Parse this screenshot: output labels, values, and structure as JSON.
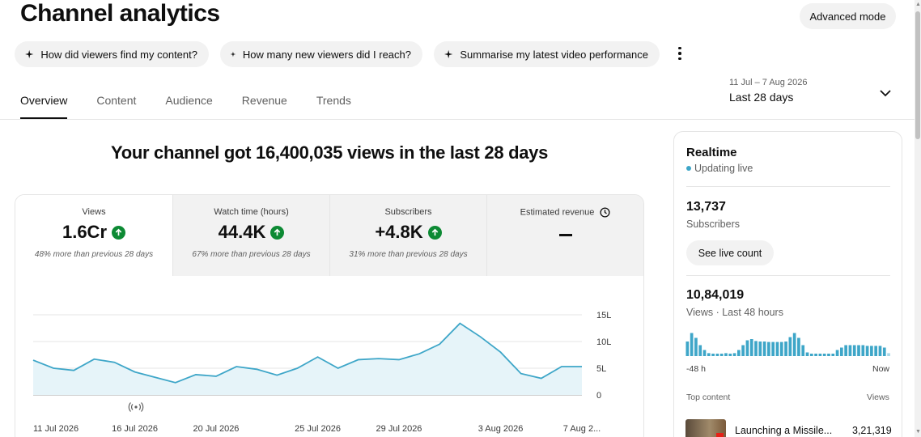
{
  "header": {
    "title": "Channel analytics",
    "advanced_mode": "Advanced mode"
  },
  "chips": [
    {
      "label": "How did viewers find my content?",
      "icon": "sparkle-icon"
    },
    {
      "label": "How many new viewers did I reach?",
      "icon": "sparkle-icon"
    },
    {
      "label": "Summarise my latest video performance",
      "icon": "sparkle-icon"
    }
  ],
  "tabs": [
    {
      "label": "Overview",
      "active": true
    },
    {
      "label": "Content"
    },
    {
      "label": "Audience"
    },
    {
      "label": "Revenue"
    },
    {
      "label": "Trends"
    }
  ],
  "date_range": {
    "range": "11 Jul – 7 Aug 2026",
    "label": "Last 28 days"
  },
  "headline": "Your channel got 16,400,035 views in the last 28 days",
  "metrics": [
    {
      "label": "Views",
      "value": "1.6Cr",
      "change": "48% more than previous 28 days",
      "trend": "up"
    },
    {
      "label": "Watch time (hours)",
      "value": "44.4K",
      "change": "67% more than previous 28 days",
      "trend": "up"
    },
    {
      "label": "Subscribers",
      "value": "+4.8K",
      "change": "31% more than previous 28 days",
      "trend": "up"
    },
    {
      "label": "Estimated revenue",
      "value": "",
      "trend": "none"
    }
  ],
  "chart_data": {
    "type": "area",
    "x": [
      "11 Jul",
      "12 Jul",
      "13 Jul",
      "14 Jul",
      "15 Jul",
      "16 Jul",
      "17 Jul",
      "18 Jul",
      "19 Jul",
      "20 Jul",
      "21 Jul",
      "22 Jul",
      "23 Jul",
      "24 Jul",
      "25 Jul",
      "26 Jul",
      "27 Jul",
      "28 Jul",
      "29 Jul",
      "30 Jul",
      "31 Jul",
      "1 Aug",
      "2 Aug",
      "3 Aug",
      "4 Aug",
      "5 Aug",
      "6 Aug",
      "7 Aug"
    ],
    "values": [
      6.5,
      5.0,
      4.6,
      6.7,
      6.1,
      4.3,
      3.3,
      2.3,
      3.8,
      3.5,
      5.3,
      4.8,
      3.7,
      5.0,
      7.1,
      5.0,
      6.6,
      6.8,
      6.6,
      7.7,
      9.5,
      13.4,
      10.9,
      8.0,
      4.0,
      3.1,
      5.3,
      5.3
    ],
    "ylim": [
      0,
      15
    ],
    "y_ticks": [
      "15L",
      "10L",
      "5L",
      "0"
    ],
    "y_tick_values": [
      15,
      10,
      5,
      0
    ],
    "x_tick_labels": [
      "11 Jul 2026",
      "16 Jul 2026",
      "20 Jul 2026",
      "25 Jul 2026",
      "29 Jul 2026",
      "3 Aug 2026",
      "7 Aug 2..."
    ],
    "x_tick_index": [
      0,
      5,
      9,
      14,
      18,
      23,
      27
    ],
    "units": "L (lakh views)",
    "grid": true,
    "marker_icon": "live-broadcast-icon",
    "series_color": "#3ea6c8",
    "fill_color": "#e6f4f9"
  },
  "realtime": {
    "title": "Realtime",
    "status": "Updating live",
    "status_color": "#3ea6c8",
    "subscribers": "13,737",
    "subscribers_label": "Subscribers",
    "live_button": "See live count",
    "views": "10,84,019",
    "views_label": "Views · Last 48 hours",
    "axis_start": "-48 h",
    "axis_end": "Now",
    "bars": [
      0.6,
      0.95,
      0.75,
      0.45,
      0.25,
      0.12,
      0.1,
      0.1,
      0.1,
      0.12,
      0.1,
      0.12,
      0.25,
      0.45,
      0.65,
      0.7,
      0.62,
      0.6,
      0.6,
      0.58,
      0.58,
      0.58,
      0.58,
      0.6,
      0.78,
      0.95,
      0.75,
      0.45,
      0.15,
      0.1,
      0.1,
      0.1,
      0.1,
      0.1,
      0.1,
      0.25,
      0.35,
      0.45,
      0.45,
      0.45,
      0.45,
      0.45,
      0.42,
      0.42,
      0.42,
      0.42,
      0.35,
      0.12
    ],
    "top_content_label": "Top content",
    "views_col_label": "Views",
    "top_items": [
      {
        "title": "Launching a Missile...",
        "views": "3,21,319"
      }
    ]
  }
}
